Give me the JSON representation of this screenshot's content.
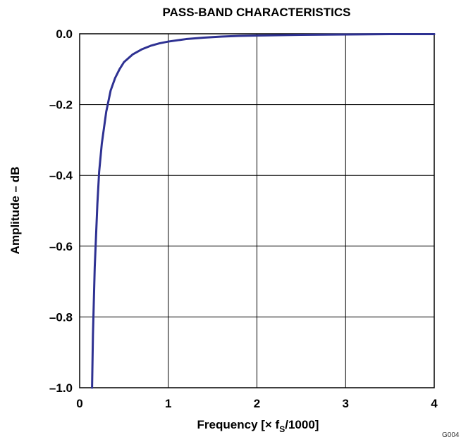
{
  "chart_data": {
    "type": "line",
    "title": "PASS-BAND CHARACTERISTICS",
    "xlabel": "Frequency [× f",
    "xlabel_sub": "S",
    "xlabel_tail": "/1000]",
    "ylabel": "Amplitude – dB",
    "xlim": [
      0,
      4
    ],
    "ylim": [
      -1.0,
      0.0
    ],
    "x_ticks": [
      "0",
      "1",
      "2",
      "3",
      "4"
    ],
    "y_ticks": [
      "0.0",
      "–0.2",
      "–0.4",
      "–0.6",
      "–0.8",
      "–1.0"
    ],
    "grid": true,
    "line_color": "#2e3192",
    "series": [
      {
        "x": [
          0.14,
          0.15,
          0.17,
          0.2,
          0.22,
          0.25,
          0.3,
          0.35,
          0.4,
          0.45,
          0.5,
          0.6,
          0.7,
          0.8,
          0.9,
          1.0,
          1.2,
          1.4,
          1.6,
          1.8,
          2.0,
          2.5,
          3.0,
          3.5,
          4.0
        ],
        "y": [
          -1.0,
          -0.85,
          -0.66,
          -0.48,
          -0.39,
          -0.31,
          -0.22,
          -0.16,
          -0.125,
          -0.1,
          -0.08,
          -0.058,
          -0.044,
          -0.034,
          -0.027,
          -0.022,
          -0.015,
          -0.011,
          -0.008,
          -0.006,
          -0.005,
          -0.003,
          -0.002,
          -0.001,
          -0.001
        ]
      }
    ],
    "corner_code": "G004"
  }
}
